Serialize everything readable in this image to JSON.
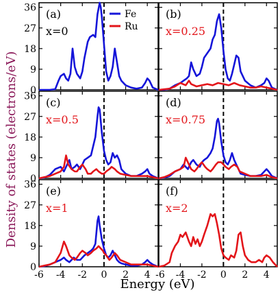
{
  "figure": {
    "ylabel": "Density of states (electrons/eV)",
    "xlabel": "Energy (eV)",
    "colors": {
      "fe": "#1515d9",
      "ru": "#e3151a",
      "ylabel": "#8b1a5a"
    }
  },
  "chart_data": [
    {
      "type": "line",
      "panel": "(a)",
      "label": "x=0",
      "xlim": [
        -6,
        5
      ],
      "ylim": [
        0,
        38
      ],
      "yticks": [
        "0",
        "9",
        "18",
        "27",
        "36"
      ],
      "legend": {
        "position": "top-center",
        "entries": [
          "Fe",
          "Ru"
        ]
      },
      "series": [
        {
          "name": "Fe",
          "x": [
            -6,
            -5,
            -4.5,
            -4.2,
            -4,
            -3.7,
            -3.5,
            -3.3,
            -3.1,
            -2.9,
            -2.7,
            -2.5,
            -2.2,
            -2,
            -1.8,
            -1.5,
            -1.3,
            -1,
            -0.8,
            -0.6,
            -0.4,
            -0.3,
            -0.2,
            0,
            0.2,
            0.4,
            0.6,
            0.8,
            1,
            1.2,
            1.4,
            1.6,
            2,
            2.5,
            3,
            3.5,
            3.8,
            4,
            4.2,
            4.5,
            5
          ],
          "y": [
            0,
            0,
            0.3,
            4,
            6,
            7,
            5,
            4,
            7,
            18,
            10,
            7,
            5,
            8,
            14,
            21,
            23,
            24,
            23,
            33,
            38,
            36,
            32,
            20,
            8,
            4,
            6,
            10,
            18,
            12,
            6,
            4,
            2,
            1,
            0.5,
            1,
            3,
            5,
            4,
            1,
            0
          ]
        },
        {
          "name": "Ru",
          "x": [],
          "y": []
        }
      ]
    },
    {
      "type": "line",
      "panel": "(b)",
      "label": "x=0.25",
      "xlim": [
        -6,
        5
      ],
      "ylim": [
        0,
        38
      ],
      "yticks": [
        "0",
        "9",
        "18",
        "27",
        "36"
      ],
      "series": [
        {
          "name": "Fe",
          "x": [
            -6,
            -5.5,
            -5,
            -4.5,
            -4,
            -3.7,
            -3.4,
            -3.2,
            -3,
            -2.8,
            -2.5,
            -2.2,
            -2,
            -1.8,
            -1.5,
            -1.2,
            -1,
            -0.8,
            -0.6,
            -0.4,
            -0.2,
            0,
            0.2,
            0.4,
            0.6,
            0.8,
            1,
            1.2,
            1.4,
            1.6,
            2,
            2.5,
            3,
            3.5,
            3.8,
            4,
            4.2,
            4.5,
            5
          ],
          "y": [
            0,
            0,
            0.5,
            2,
            3,
            4,
            5,
            6,
            12,
            9,
            6,
            7,
            10,
            14,
            16,
            18,
            22,
            24,
            30,
            33,
            27,
            17,
            9,
            5,
            4,
            7,
            11,
            15,
            14,
            8,
            4,
            2,
            1,
            2,
            3,
            5,
            4,
            1,
            0
          ]
        },
        {
          "name": "Ru",
          "x": [
            -6,
            -5,
            -4.5,
            -4,
            -3.5,
            -3.2,
            -3,
            -2.5,
            -2,
            -1.5,
            -1,
            -0.5,
            0,
            0.5,
            1,
            1.5,
            2,
            2.5,
            3,
            3.5,
            4,
            4.5,
            5
          ],
          "y": [
            0,
            0.5,
            1.5,
            3,
            2,
            4,
            2.5,
            1.5,
            2,
            2.5,
            2,
            3,
            2.5,
            2,
            3,
            2,
            1.5,
            1,
            1,
            1.5,
            1,
            0.5,
            0
          ]
        }
      ]
    },
    {
      "type": "line",
      "panel": "(c)",
      "label": "x=0.5",
      "xlim": [
        -6,
        5
      ],
      "ylim": [
        0,
        38
      ],
      "yticks": [
        "0",
        "9",
        "18",
        "27",
        "36"
      ],
      "series": [
        {
          "name": "Fe",
          "x": [
            -6,
            -5.5,
            -5,
            -4.5,
            -4,
            -3.7,
            -3.4,
            -3.2,
            -3,
            -2.7,
            -2.5,
            -2.2,
            -2,
            -1.8,
            -1.5,
            -1.2,
            -1,
            -0.8,
            -0.6,
            -0.5,
            -0.4,
            -0.2,
            0,
            0.2,
            0.4,
            0.6,
            0.8,
            1,
            1.2,
            1.4,
            1.6,
            2,
            2.5,
            3,
            3.5,
            3.8,
            4,
            4.2,
            4.5,
            5
          ],
          "y": [
            0,
            0.3,
            1.5,
            4,
            5,
            3,
            6,
            8,
            4,
            5,
            6,
            4,
            6,
            8,
            9,
            10,
            14,
            18,
            27,
            31,
            30,
            20,
            12,
            8,
            6,
            7,
            11,
            9,
            10,
            8,
            4,
            2,
            1,
            1,
            2,
            3,
            4,
            2,
            1,
            0
          ]
        },
        {
          "name": "Ru",
          "x": [
            -6,
            -5.5,
            -5,
            -4.5,
            -4,
            -3.7,
            -3.5,
            -3.3,
            -3,
            -2.7,
            -2.5,
            -2.2,
            -2,
            -1.7,
            -1.5,
            -1.2,
            -1,
            -0.7,
            -0.5,
            -0.2,
            0,
            0.2,
            0.5,
            0.7,
            1,
            1.2,
            1.5,
            2,
            2.5,
            3,
            3.5,
            4,
            4.5,
            5
          ],
          "y": [
            0,
            0.5,
            1,
            2,
            3,
            5,
            10,
            6,
            4,
            3,
            3,
            5,
            6,
            4,
            2,
            2,
            3,
            4,
            3,
            2,
            2,
            3,
            4,
            5,
            4,
            3,
            2,
            1.5,
            1,
            1,
            1,
            1,
            0.5,
            0
          ]
        }
      ]
    },
    {
      "type": "line",
      "panel": "(d)",
      "label": "x=0.75",
      "xlim": [
        -6,
        5
      ],
      "ylim": [
        0,
        38
      ],
      "yticks": [
        "0",
        "9",
        "18",
        "27",
        "36"
      ],
      "series": [
        {
          "name": "Fe",
          "x": [
            -6,
            -5.5,
            -5,
            -4.5,
            -4,
            -3.7,
            -3.5,
            -3.3,
            -3,
            -2.8,
            -2.5,
            -2.2,
            -2,
            -1.8,
            -1.5,
            -1.2,
            -1,
            -0.8,
            -0.6,
            -0.5,
            -0.4,
            -0.2,
            0,
            0.2,
            0.4,
            0.6,
            0.8,
            1,
            1.2,
            1.4,
            1.6,
            2,
            2.5,
            3,
            3.5,
            3.8,
            4,
            4.2,
            4.5,
            5
          ],
          "y": [
            0,
            0.3,
            1,
            3,
            4,
            6,
            5,
            4,
            7,
            8,
            6,
            5,
            7,
            8,
            9,
            11,
            13,
            18,
            25,
            26,
            24,
            16,
            10,
            7,
            6,
            8,
            11,
            8,
            6,
            4,
            2,
            1.5,
            1,
            1,
            1.5,
            3,
            4,
            3,
            1,
            0
          ]
        },
        {
          "name": "Ru",
          "x": [
            -6,
            -5.5,
            -5,
            -4.5,
            -4,
            -3.7,
            -3.5,
            -3.2,
            -3,
            -2.7,
            -2.5,
            -2.2,
            -2,
            -1.7,
            -1.5,
            -1.2,
            -1,
            -0.7,
            -0.5,
            -0.2,
            0,
            0.2,
            0.5,
            0.7,
            1,
            1.3,
            1.5,
            2,
            2.5,
            3,
            3.5,
            4,
            4.5,
            5
          ],
          "y": [
            0,
            0.5,
            1.5,
            3,
            4,
            5,
            9,
            6,
            4,
            3,
            4,
            6,
            7,
            5,
            4,
            3,
            4,
            6,
            7,
            7,
            6,
            5,
            4,
            5,
            6,
            5,
            3,
            2,
            1,
            1,
            1,
            1.5,
            0.5,
            0
          ]
        }
      ]
    },
    {
      "type": "line",
      "panel": "(e)",
      "label": "x=1",
      "xlim": [
        -6,
        5
      ],
      "ylim": [
        0,
        38
      ],
      "yticks": [
        "0",
        "9",
        "18",
        "27",
        "36"
      ],
      "series": [
        {
          "name": "Fe",
          "x": [
            -6,
            -5.5,
            -5,
            -4.5,
            -4,
            -3.7,
            -3.5,
            -3.2,
            -3,
            -2.8,
            -2.5,
            -2.2,
            -2,
            -1.8,
            -1.5,
            -1.2,
            -1,
            -0.8,
            -0.6,
            -0.5,
            -0.4,
            -0.2,
            0,
            0.2,
            0.4,
            0.6,
            0.8,
            1,
            1.2,
            1.4,
            1.6,
            2,
            2.5,
            3,
            3.5,
            3.8,
            4,
            4.2,
            4.5,
            5
          ],
          "y": [
            0,
            0.3,
            1,
            2,
            3,
            4,
            3,
            2,
            3,
            4,
            3,
            3,
            4,
            5,
            6,
            7,
            8,
            10,
            20,
            22,
            18,
            12,
            8,
            5,
            4,
            5,
            7,
            5,
            3,
            2,
            1.5,
            1,
            0.5,
            0.5,
            1,
            2,
            3,
            2,
            1,
            0
          ]
        },
        {
          "name": "Ru",
          "x": [
            -6,
            -5.5,
            -5,
            -4.5,
            -4,
            -3.7,
            -3.5,
            -3.2,
            -3,
            -2.7,
            -2.5,
            -2.2,
            -2,
            -1.7,
            -1.5,
            -1.2,
            -1,
            -0.7,
            -0.5,
            -0.3,
            -0.1,
            0,
            0.2,
            0.5,
            0.7,
            1,
            1.2,
            1.5,
            2,
            2.5,
            3,
            3.5,
            4,
            4.5,
            5
          ],
          "y": [
            0,
            0.5,
            1,
            2,
            6,
            11,
            9,
            5,
            4,
            3,
            4,
            6,
            7,
            6,
            5,
            6,
            7,
            8,
            9,
            8,
            7,
            6,
            5,
            3,
            4,
            6,
            5,
            3,
            2,
            1,
            1,
            1,
            1,
            0.5,
            0
          ]
        }
      ]
    },
    {
      "type": "line",
      "panel": "(f)",
      "label": "x=2",
      "xlim": [
        -6,
        5
      ],
      "ylim": [
        0,
        38
      ],
      "yticks": [
        "0",
        "9",
        "18",
        "27",
        "36"
      ],
      "series": [
        {
          "name": "Fe",
          "x": [],
          "y": []
        },
        {
          "name": "Ru",
          "x": [
            -6,
            -5.5,
            -5,
            -4.8,
            -4.5,
            -4.2,
            -4,
            -3.8,
            -3.5,
            -3.2,
            -3,
            -2.8,
            -2.6,
            -2.4,
            -2.2,
            -2,
            -1.8,
            -1.5,
            -1.2,
            -1,
            -0.8,
            -0.6,
            -0.4,
            -0.2,
            0,
            0.2,
            0.5,
            0.7,
            1,
            1.2,
            1.4,
            1.6,
            1.8,
            2,
            2.3,
            2.6,
            3,
            3.3,
            3.6,
            3.8,
            4,
            4.3,
            4.6,
            5
          ],
          "y": [
            0,
            0.5,
            2,
            6,
            9,
            11,
            14,
            13,
            15,
            11,
            9,
            13,
            10,
            12,
            9,
            11,
            14,
            18,
            23,
            22,
            23,
            19,
            14,
            8,
            5,
            4,
            3,
            5,
            4,
            7,
            14,
            15,
            9,
            5,
            3,
            2,
            2,
            3,
            2,
            4,
            5,
            4,
            2,
            0
          ]
        }
      ]
    }
  ]
}
